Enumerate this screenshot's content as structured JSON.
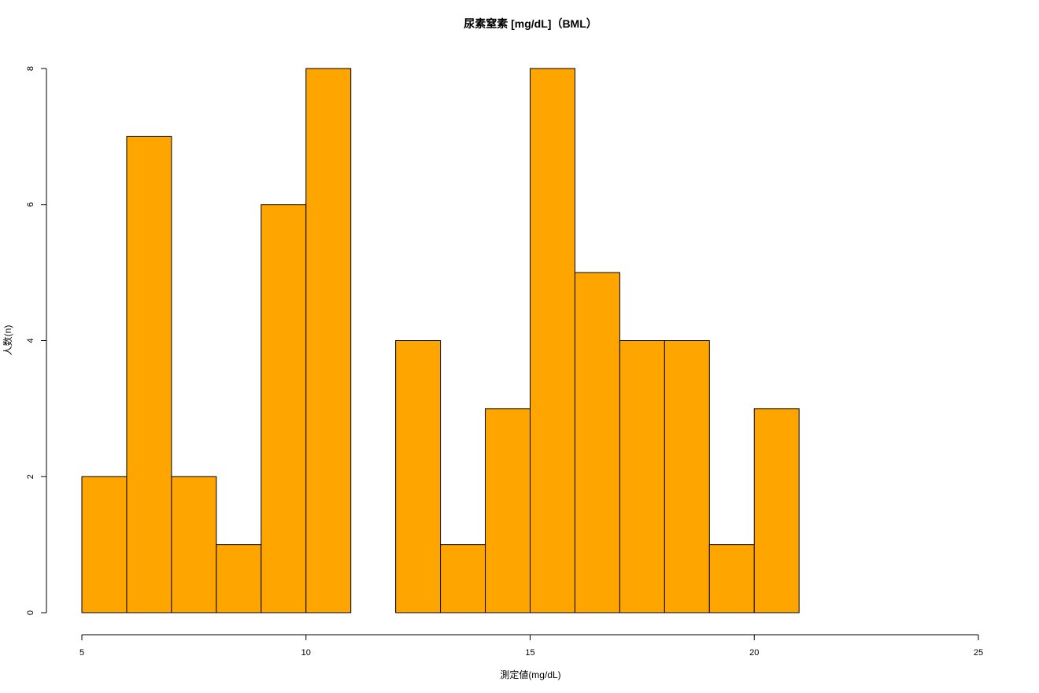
{
  "chart_data": {
    "type": "bar",
    "title": "尿素窒素 [mg/dL]（BML）",
    "xlabel": "測定値(mg/dL)",
    "ylabel": "人数(n)",
    "bin_edges": [
      5,
      6,
      7,
      8,
      9,
      10,
      11,
      12,
      13,
      14,
      15,
      16,
      17,
      18,
      19,
      20,
      21
    ],
    "values": [
      2,
      7,
      2,
      1,
      6,
      8,
      0,
      4,
      1,
      3,
      8,
      5,
      4,
      4,
      1,
      3
    ],
    "xlim": [
      5,
      25
    ],
    "ylim": [
      0,
      8
    ],
    "x_ticks": [
      5,
      10,
      15,
      20,
      25
    ],
    "y_ticks": [
      0,
      2,
      4,
      6,
      8
    ],
    "x_tick_labels": [
      "5",
      "10",
      "15",
      "20",
      "25"
    ],
    "y_tick_labels": [
      "0",
      "2",
      "4",
      "6",
      "8"
    ],
    "bar_color": "#FFA500",
    "grid": false,
    "legend": "none"
  }
}
